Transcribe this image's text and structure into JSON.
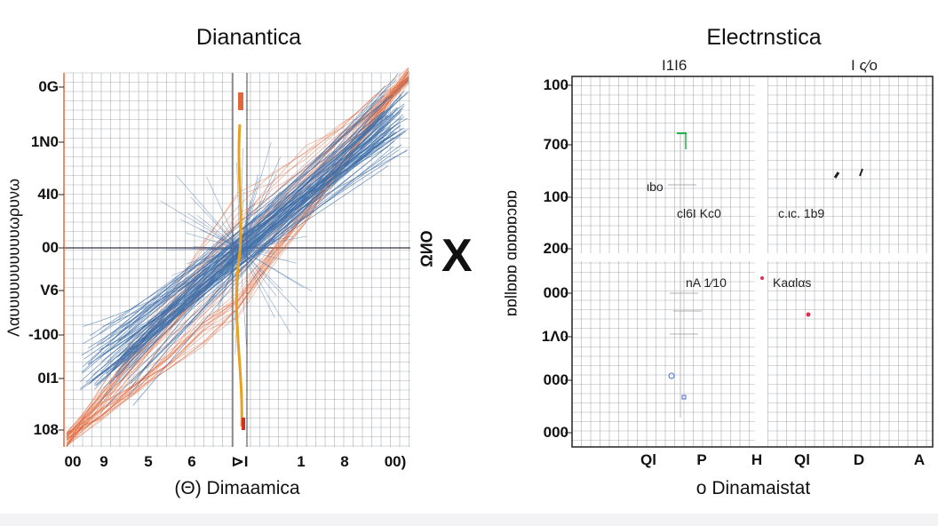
{
  "chart_data": [
    {
      "type": "line",
      "title": "Dianantica",
      "xlabel": "(Θ) Dimaamica",
      "ylabel": "Λαυυυυυυυυυυωρυνω",
      "right_label": "ΩИО",
      "x_tick_labels": [
        "00",
        "9",
        "5",
        "6",
        "⊳I",
        "1",
        "8",
        "00)"
      ],
      "y_tick_labels": [
        "0G",
        "1N0",
        "4I0",
        "00",
        "V6",
        "-100",
        "0I1",
        "108"
      ],
      "grid": true,
      "colors": {
        "bundle": "#3f6fa8",
        "envelope": "#e2683c",
        "center": "#e8a020",
        "grid": "#8a8f96"
      }
    },
    {
      "type": "scatter",
      "title": "Electrnstica",
      "top_labels": [
        "I1I6",
        "I ς⁄o"
      ],
      "xlabel": "o Dinamaistat",
      "ylabel": "ɒɒllɒɒɒ ɑɒɒɒɒɔɒɒ",
      "x_tick_labels": [
        "Ql",
        "P",
        "H",
        "Ql",
        "D",
        "A"
      ],
      "y_tick_labels": [
        "100",
        "700",
        "100",
        "200",
        "000",
        "1Λ0",
        "000",
        "000"
      ],
      "annotations": [
        "ιbo",
        "cl6I Kc0",
        "c.ιc. 1b9",
        "nA 1⁄10",
        "Kaαlαs"
      ],
      "grid": true,
      "colors": {
        "green": "#22b14c",
        "red": "#e0304a",
        "blue": "#4a6fd0",
        "grid": "#8a8f96"
      }
    }
  ],
  "separator_symbol": "X"
}
